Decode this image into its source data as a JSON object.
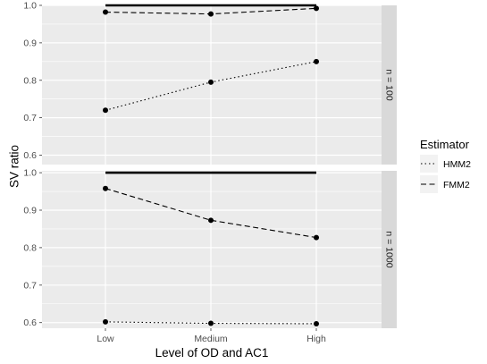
{
  "chart_data": {
    "type": "line",
    "xlabel": "Level of OD and AC1",
    "ylabel": "SV ratio",
    "categories": [
      "Low",
      "Medium",
      "High"
    ],
    "legend": {
      "title": "Estimator",
      "position": "right",
      "entries": [
        {
          "name": "HMM2",
          "linestyle": "dotted"
        },
        {
          "name": "FMM2",
          "linestyle": "dashed"
        }
      ]
    },
    "grid": true,
    "colors": {
      "panel_bg": "#ebebeb",
      "grid": "#ffffff",
      "strip_bg": "#d9d9d9",
      "line": "#000000",
      "reference_line": "#000000"
    },
    "reference_line": {
      "y": 1.0
    },
    "panels": [
      {
        "strip_label": "n = 100",
        "ylim": [
          0.575,
          1.0
        ],
        "yticks": [
          "0.6",
          "0.7",
          "0.8",
          "0.9",
          "1.0"
        ],
        "series": [
          {
            "name": "HMM2",
            "values": [
              0.72,
              0.795,
              0.85
            ]
          },
          {
            "name": "FMM2",
            "values": [
              0.982,
              0.977,
              0.992
            ]
          }
        ]
      },
      {
        "strip_label": "n = 1000",
        "ylim": [
          0.585,
          1.005
        ],
        "yticks": [
          "0.6",
          "0.7",
          "0.8",
          "0.9",
          "1.0"
        ],
        "series": [
          {
            "name": "HMM2",
            "values": [
              0.602,
              0.598,
              0.597
            ]
          },
          {
            "name": "FMM2",
            "values": [
              0.958,
              0.873,
              0.827
            ]
          }
        ]
      }
    ]
  }
}
